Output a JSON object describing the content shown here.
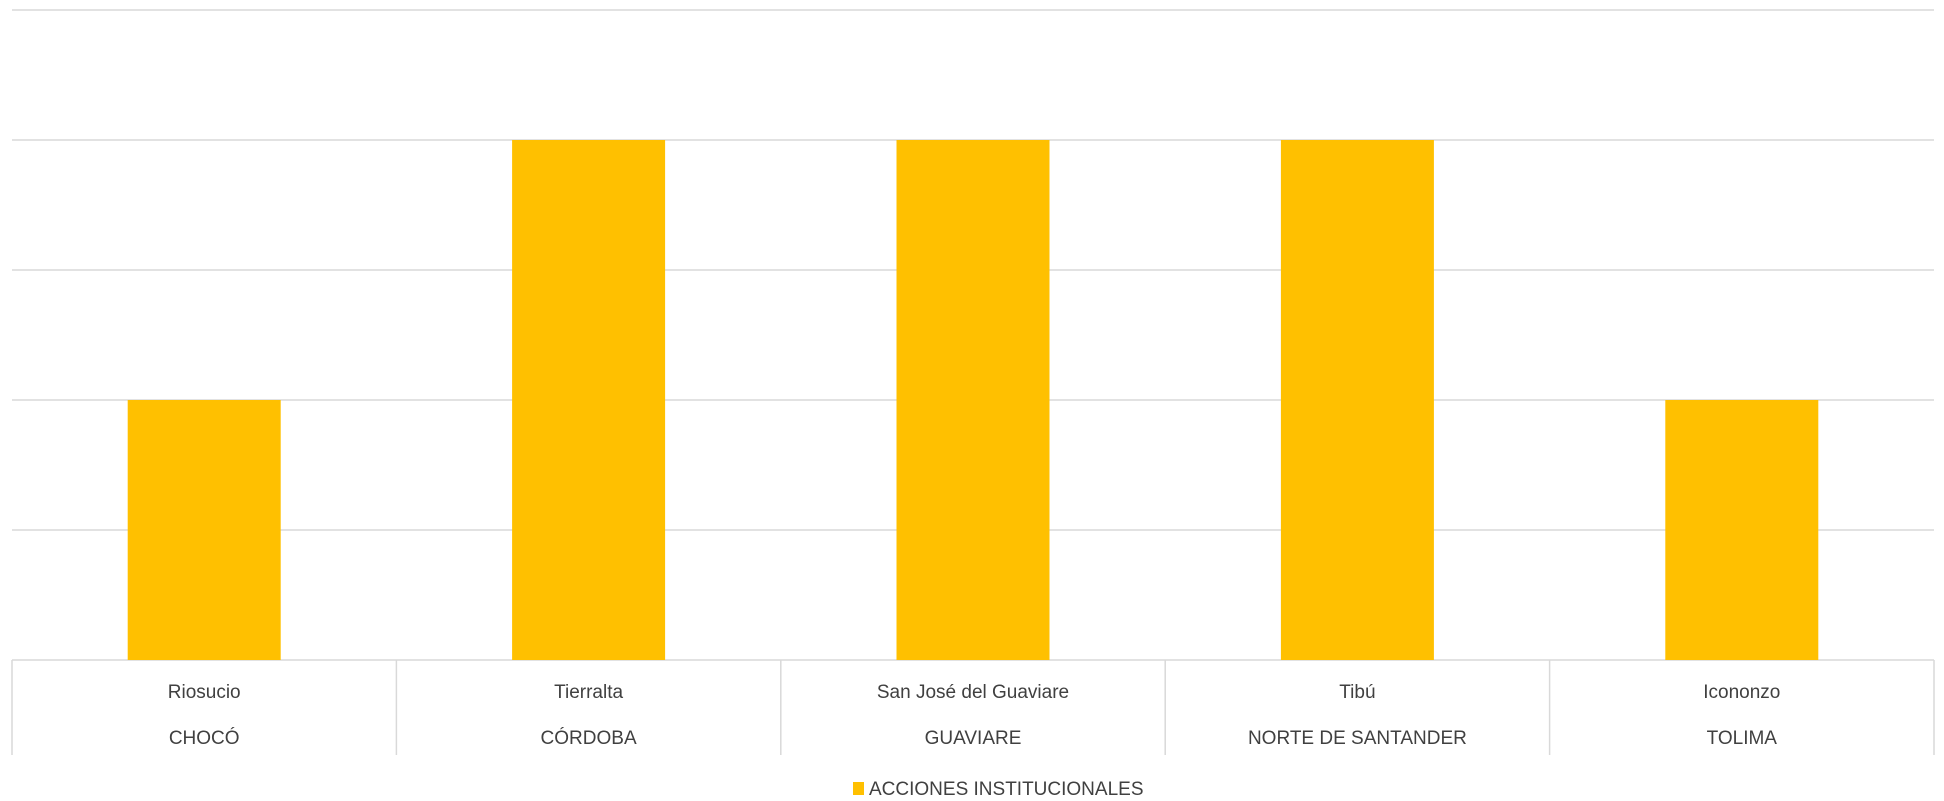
{
  "chart_data": {
    "type": "bar",
    "title": "",
    "xlabel": "",
    "ylabel": "",
    "ylim": [
      0,
      5
    ],
    "grid": true,
    "value_axis_labels_shown": false,
    "legend_position": "bottom",
    "categories": [
      {
        "municipality": "Riosucio",
        "department": "CHOCÓ"
      },
      {
        "municipality": "Tierralta",
        "department": "CÓRDOBA"
      },
      {
        "municipality": "San José del Guaviare",
        "department": "GUAVIARE"
      },
      {
        "municipality": "Tibú",
        "department": "NORTE DE SANTANDER"
      },
      {
        "municipality": "Icononzo",
        "department": "TOLIMA"
      }
    ],
    "series": [
      {
        "name": "ACCIONES INSTITUCIONALES",
        "color": "#FFC000",
        "values": [
          2,
          4,
          4,
          4,
          2
        ]
      }
    ]
  },
  "colors": {
    "gridline": "#D9D9D9",
    "label_text": "#404040",
    "bar": "#FFC000"
  }
}
